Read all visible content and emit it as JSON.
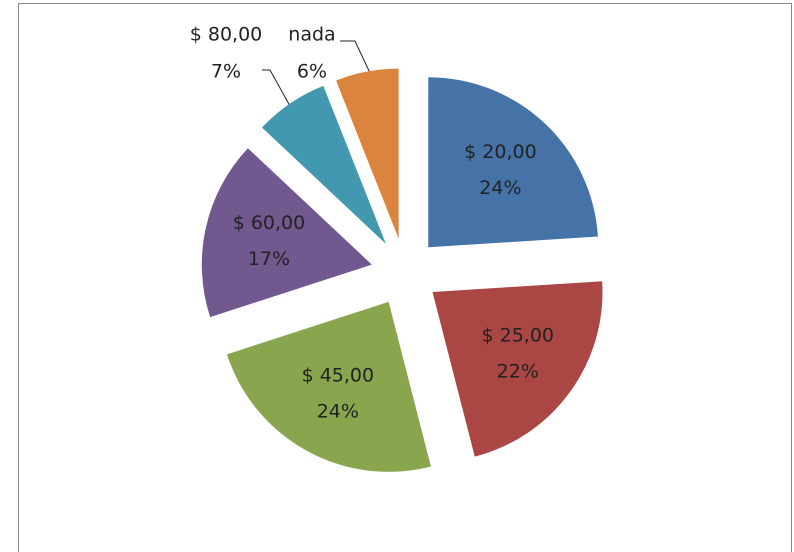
{
  "chart_data": {
    "type": "pie",
    "categories": [
      "$ 20,00",
      "$ 25,00",
      "$ 45,00",
      "$ 60,00",
      "$ 80,00",
      "nada"
    ],
    "values": [
      24,
      22,
      24,
      17,
      7,
      6
    ],
    "value_labels": [
      "24%",
      "22%",
      "24%",
      "17%",
      "7%",
      "6%"
    ],
    "colors": [
      "#4572a7",
      "#aa4643",
      "#89a54e",
      "#71588f",
      "#4198af",
      "#db843d"
    ]
  }
}
